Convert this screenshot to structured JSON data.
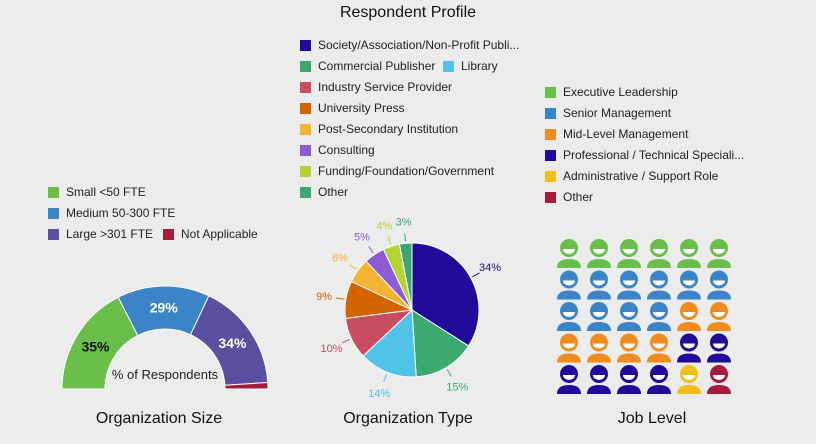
{
  "title": "Respondent Profile",
  "chart_data": [
    {
      "type": "gauge",
      "title": "Organization Size",
      "center_label": "% of Respondents",
      "categories": [
        "Small <50 FTE",
        "Medium 50-300 FTE",
        "Large >301 FTE",
        "Not Applicable"
      ],
      "values": [
        35,
        29,
        34,
        2
      ],
      "labels": [
        "35%",
        "29%",
        "34%",
        ""
      ],
      "colors": [
        "#6abf4b",
        "#3a84c7",
        "#5b4fa0",
        "#a51c3d"
      ]
    },
    {
      "type": "pie",
      "title": "Organization Type",
      "categories": [
        "Society/Association/Non-Profit Publi...",
        "Commercial Publisher",
        "Library",
        "Industry Service Provider",
        "University Press",
        "Post-Secondary Institution",
        "Consulting",
        "Funding/Foundation/Government",
        "Other"
      ],
      "values": [
        34,
        15,
        14,
        10,
        9,
        6,
        5,
        4,
        3
      ],
      "labels": [
        "34%",
        "15%",
        "14%",
        "10%",
        "9%",
        "6%",
        "5%",
        "4%",
        "3%"
      ],
      "colors": [
        "#1f0a99",
        "#3aaa6f",
        "#4fc3e8",
        "#c94c60",
        "#d46400",
        "#f5b333",
        "#8d5bd6",
        "#b5d334",
        "#3ba776"
      ]
    },
    {
      "type": "pictogram",
      "title": "Job Level",
      "categories": [
        "Executive Leadership",
        "Senior Management",
        "Mid-Level Management",
        "Professional / Technical Speciali...",
        "Administrative / Support Role",
        "Other"
      ],
      "values": [
        6,
        10,
        6,
        6,
        1,
        1
      ],
      "colors": [
        "#6abf4b",
        "#3a84c7",
        "#f28c1f",
        "#1f0a99",
        "#f3bd1a",
        "#a51c3d"
      ]
    }
  ]
}
